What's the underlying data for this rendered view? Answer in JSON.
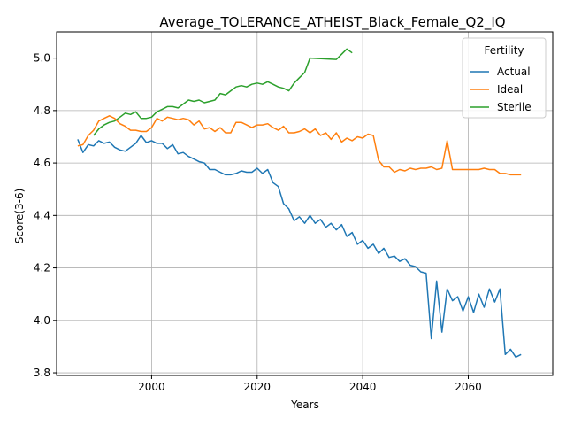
{
  "chart_data": {
    "type": "line",
    "title": "Average_TOLERANCE_ATHEIST_Black_Female_Q2_IQ",
    "xlabel": "Years",
    "ylabel": "Score(3-6)",
    "xlim": [
      1982,
      2076
    ],
    "ylim": [
      3.79,
      5.1
    ],
    "xticks": [
      2000,
      2020,
      2040,
      2060
    ],
    "yticks": [
      3.8,
      4.0,
      4.2,
      4.4,
      4.6,
      4.8,
      5.0
    ],
    "ytick_labels": [
      "3.8",
      "4.0",
      "4.2",
      "4.4",
      "4.6",
      "4.8",
      "5.0"
    ],
    "grid": true,
    "legend": {
      "title": "Fertility",
      "position": "top-right"
    },
    "series": [
      {
        "name": "Actual",
        "color": "#1f77b4",
        "x": [
          1986,
          1987,
          1988,
          1989,
          1990,
          1991,
          1992,
          1993,
          1994,
          1995,
          1996,
          1997,
          1998,
          1999,
          2000,
          2001,
          2002,
          2003,
          2004,
          2005,
          2006,
          2007,
          2008,
          2009,
          2010,
          2011,
          2012,
          2013,
          2014,
          2015,
          2016,
          2017,
          2018,
          2019,
          2020,
          2021,
          2022,
          2023,
          2024,
          2025,
          2026,
          2027,
          2028,
          2029,
          2030,
          2031,
          2032,
          2033,
          2034,
          2035,
          2036,
          2037,
          2038,
          2039,
          2040,
          2041,
          2042,
          2043,
          2044,
          2045,
          2046,
          2047,
          2048,
          2049,
          2050,
          2051,
          2052,
          2053,
          2054,
          2055,
          2056,
          2057,
          2058,
          2059,
          2060,
          2061,
          2062,
          2063,
          2064,
          2065,
          2066,
          2067,
          2068,
          2069,
          2070
        ],
        "y": [
          4.69,
          4.64,
          4.67,
          4.665,
          4.685,
          4.675,
          4.68,
          4.66,
          4.65,
          4.645,
          4.66,
          4.675,
          4.705,
          4.678,
          4.685,
          4.675,
          4.675,
          4.655,
          4.67,
          4.635,
          4.64,
          4.625,
          4.615,
          4.605,
          4.6,
          4.575,
          4.575,
          4.565,
          4.555,
          4.555,
          4.56,
          4.57,
          4.565,
          4.565,
          4.58,
          4.56,
          4.575,
          4.525,
          4.51,
          4.445,
          4.425,
          4.38,
          4.395,
          4.37,
          4.4,
          4.37,
          4.385,
          4.355,
          4.37,
          4.345,
          4.365,
          4.32,
          4.335,
          4.29,
          4.305,
          4.275,
          4.29,
          4.255,
          4.275,
          4.24,
          4.245,
          4.225,
          4.235,
          4.21,
          4.205,
          4.185,
          4.18,
          3.93,
          4.15,
          3.955,
          4.12,
          4.075,
          4.09,
          4.035,
          4.09,
          4.03,
          4.1,
          4.05,
          4.12,
          4.07,
          4.12,
          3.87,
          3.89,
          3.86,
          3.87
        ]
      },
      {
        "name": "Ideal",
        "color": "#ff7f0e",
        "x": [
          1986,
          1987,
          1988,
          1989,
          1990,
          1991,
          1992,
          1993,
          1994,
          1995,
          1996,
          1997,
          1998,
          1999,
          2000,
          2001,
          2002,
          2003,
          2004,
          2005,
          2006,
          2007,
          2008,
          2009,
          2010,
          2011,
          2012,
          2013,
          2014,
          2015,
          2016,
          2017,
          2018,
          2019,
          2020,
          2021,
          2022,
          2023,
          2024,
          2025,
          2026,
          2027,
          2028,
          2029,
          2030,
          2031,
          2032,
          2033,
          2034,
          2035,
          2036,
          2037,
          2038,
          2039,
          2040,
          2041,
          2042,
          2043,
          2044,
          2045,
          2046,
          2047,
          2048,
          2049,
          2050,
          2051,
          2052,
          2053,
          2054,
          2055,
          2056,
          2057,
          2058,
          2059,
          2060,
          2061,
          2062,
          2063,
          2064,
          2065,
          2066,
          2067,
          2068,
          2069,
          2070
        ],
        "y": [
          4.665,
          4.67,
          4.705,
          4.725,
          4.76,
          4.77,
          4.78,
          4.77,
          4.75,
          4.74,
          4.725,
          4.725,
          4.72,
          4.72,
          4.735,
          4.77,
          4.76,
          4.775,
          4.77,
          4.765,
          4.77,
          4.765,
          4.745,
          4.76,
          4.73,
          4.735,
          4.72,
          4.735,
          4.715,
          4.715,
          4.755,
          4.755,
          4.745,
          4.735,
          4.745,
          4.745,
          4.75,
          4.735,
          4.725,
          4.74,
          4.715,
          4.715,
          4.72,
          4.73,
          4.715,
          4.73,
          4.705,
          4.715,
          4.69,
          4.715,
          4.68,
          4.695,
          4.685,
          4.7,
          4.695,
          4.71,
          4.705,
          4.61,
          4.585,
          4.585,
          4.565,
          4.575,
          4.57,
          4.58,
          4.575,
          4.58,
          4.58,
          4.585,
          4.575,
          4.58,
          4.685,
          4.575,
          4.575,
          4.575,
          4.575,
          4.575,
          4.575,
          4.58,
          4.575,
          4.575,
          4.56,
          4.56,
          4.555,
          4.555,
          4.555
        ]
      },
      {
        "name": "Sterile",
        "color": "#2ca02c",
        "x": [
          1989,
          1990,
          1991,
          1992,
          1993,
          1994,
          1995,
          1996,
          1997,
          1998,
          1999,
          2000,
          2001,
          2002,
          2003,
          2004,
          2005,
          2006,
          2007,
          2008,
          2009,
          2010,
          2011,
          2012,
          2013,
          2014,
          2015,
          2016,
          2017,
          2018,
          2019,
          2020,
          2021,
          2022,
          2023,
          2024,
          2025,
          2026,
          2027,
          2028,
          2029,
          2030,
          2035,
          2036,
          2037,
          2038
        ],
        "y": [
          4.705,
          4.73,
          4.745,
          4.755,
          4.76,
          4.775,
          4.79,
          4.785,
          4.795,
          4.77,
          4.77,
          4.775,
          4.795,
          4.805,
          4.815,
          4.815,
          4.81,
          4.825,
          4.84,
          4.835,
          4.84,
          4.83,
          4.835,
          4.84,
          4.865,
          4.86,
          4.875,
          4.89,
          4.895,
          4.89,
          4.9,
          4.905,
          4.9,
          4.91,
          4.9,
          4.89,
          4.885,
          4.875,
          4.905,
          4.925,
          4.945,
          5.0,
          4.995,
          5.015,
          5.035,
          5.02
        ]
      }
    ]
  }
}
